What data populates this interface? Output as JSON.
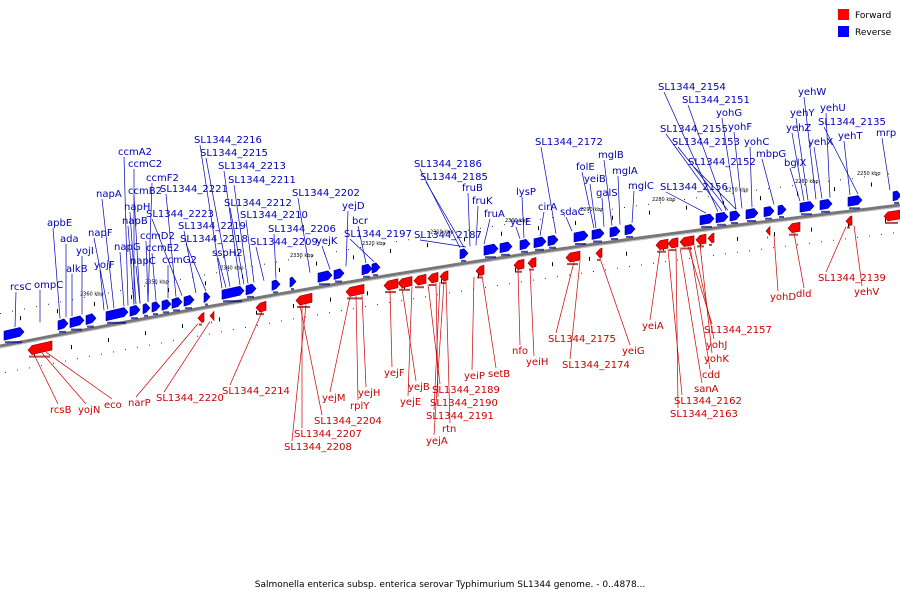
{
  "legend": {
    "forward_label": "Forward",
    "reverse_label": "Reverse",
    "forward_color": "#ff0000",
    "reverse_color": "#0000ff"
  },
  "caption": "Salmonella enterica subsp. enterica serovar Typhimurium SL1344 genome. - 0..4878...",
  "kbp_ticks": [
    "2360 kbp",
    "2350 kbp",
    "2340 kbp",
    "2330 kbp",
    "2320 kbp",
    "2310 kbp",
    "2300 kbp",
    "2290 kbp",
    "2280 kbp",
    "2270 kbp",
    "2260 kbp",
    "2250 kbp"
  ],
  "reverse_labels": [
    "rcsC",
    "ompC",
    "apbE",
    "ada",
    "alkB",
    "yojI",
    "yojF",
    "napF",
    "napA",
    "ccmA2",
    "ccmC2",
    "ccmF2",
    "ccmB2",
    "napH",
    "napB",
    "napG",
    "napC",
    "ccmD2",
    "ccmE2",
    "ccmG2",
    "SL1344_2221",
    "SL1344_2223",
    "SL1344_2219",
    "SL1344_2218",
    "sspH2",
    "SL1344_2216",
    "SL1344_2215",
    "SL1344_2213",
    "SL1344_2211",
    "SL1344_2212",
    "SL1344_2210",
    "SL1344_2209",
    "SL1344_2206",
    "SL1344_2202",
    "yejD",
    "yejK",
    "bcr",
    "SL1344_2197",
    "SL1344_2186",
    "SL1344_2185",
    "SL1344_2187",
    "fruB",
    "fruK",
    "fruA",
    "lysP",
    "yeiE",
    "cirA",
    "SL1344_2172",
    "sdaC",
    "folE",
    "yeiB",
    "galS",
    "mglB",
    "mglA",
    "mglC",
    "SL1344_2156",
    "SL1344_2154",
    "SL1344_2151",
    "yohG",
    "yohF",
    "SL1344_2155",
    "SL1344_2153",
    "yohC",
    "SL1344_2152",
    "bglX",
    "mbpG",
    "yehW",
    "yehY",
    "yehU",
    "yehZ",
    "yehX",
    "SL1344_2135",
    "yehT",
    "mrp"
  ],
  "forward_labels": [
    "rcsB",
    "yojN",
    "eco",
    "narP",
    "SL1344_2220",
    "SL1344_2214",
    "SL1344_2204",
    "SL1344_2207",
    "SL1344_2208",
    "yejM",
    "rplY",
    "yejH",
    "yejF",
    "yejB",
    "yejE",
    "SL1344_2189",
    "SL1344_2190",
    "SL1344_2191",
    "rtn",
    "yejA",
    "yeiP",
    "setB",
    "nfo",
    "yeiH",
    "SL1344_2175",
    "SL1344_2174",
    "yeiG",
    "yeiA",
    "SL1344_2157",
    "yohJ",
    "yohK",
    "cdd",
    "sanA",
    "SL1344_2162",
    "SL1344_2163",
    "yohD",
    "dld",
    "SL1344_2139",
    "yehV"
  ]
}
